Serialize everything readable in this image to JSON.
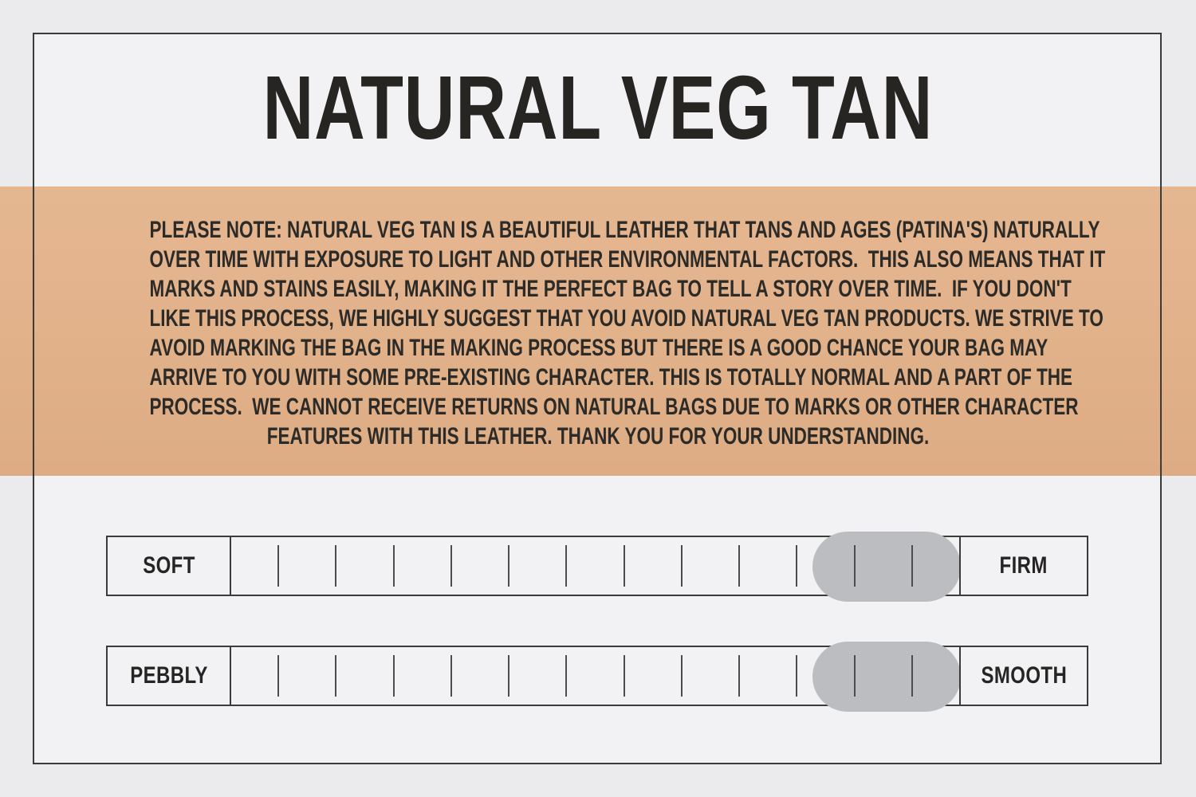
{
  "title": "NATURAL VEG TAN",
  "note": {
    "lines": [
      "PLEASE NOTE: NATURAL VEG TAN IS A BEAUTIFUL LEATHER THAT TANS AND AGES (PATINA'S) NATURALLY",
      "OVER TIME WITH EXPOSURE TO LIGHT AND OTHER ENVIRONMENTAL FACTORS.  THIS ALSO MEANS THAT IT",
      "MARKS AND STAINS EASILY, MAKING IT THE PERFECT BAG TO TELL A STORY OVER TIME.  IF YOU DON'T",
      "LIKE THIS PROCESS, WE HIGHLY SUGGEST THAT YOU AVOID NATURAL VEG TAN PRODUCTS. WE STRIVE TO",
      "AVOID MARKING THE BAG IN THE MAKING PROCESS BUT THERE IS A GOOD CHANCE YOUR BAG MAY",
      "ARRIVE TO YOU WITH SOME PRE-EXISTING CHARACTER. THIS IS TOTALLY NORMAL AND A PART OF THE",
      "PROCESS.  WE CANNOT RECEIVE RETURNS ON NATURAL BAGS DUE TO MARKS OR OTHER CHARACTER",
      "FEATURES WITH THIS LEATHER. THANK YOU FOR YOUR UNDERSTANDING."
    ]
  },
  "scales": [
    {
      "left_label": "SOFT",
      "right_label": "FIRM",
      "tick_count": 12,
      "value_percent": 90,
      "pill_span_ticks": 2
    },
    {
      "left_label": "PEBBLY",
      "right_label": "SMOOTH",
      "tick_count": 12,
      "value_percent": 90,
      "pill_span_ticks": 2
    }
  ],
  "colors": {
    "background": "#ebeaed",
    "panel": "#f2f1f4",
    "band": "#e1b18a",
    "text": "#2d2b28",
    "title": "#272522",
    "border": "#3b3b39",
    "pill": "#bcbdc0",
    "tick": "#4c4c4c"
  }
}
